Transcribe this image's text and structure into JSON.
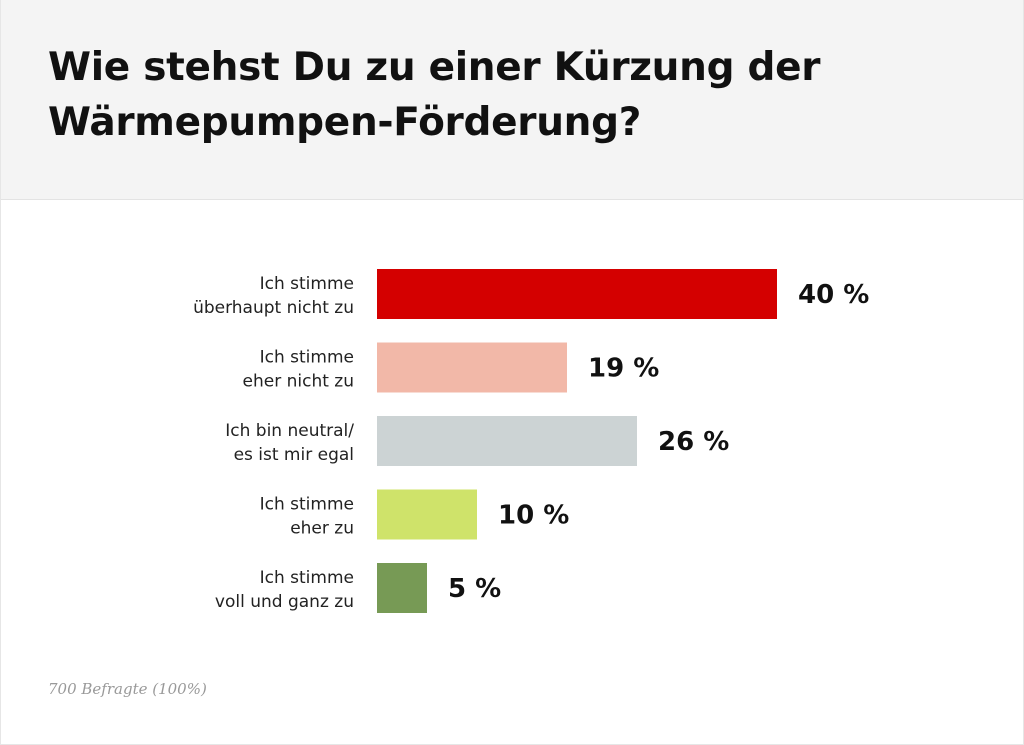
{
  "title": "Wie stehst Du zu einer Kürzung der Wärmepumpen-Förderung?",
  "footnote": "700 Befragte (100%)",
  "chart_data": {
    "type": "bar",
    "orientation": "horizontal",
    "title": "Wie stehst Du zu einer Kürzung der Wärmepumpen-Förderung?",
    "xlabel": "",
    "ylabel": "",
    "xlim": [
      0,
      40
    ],
    "grid": false,
    "categories": [
      [
        "Ich stimme",
        "überhaupt nicht zu"
      ],
      [
        "Ich stimme",
        "eher nicht zu"
      ],
      [
        "Ich bin neutral/",
        "es ist mir egal"
      ],
      [
        "Ich stimme",
        "eher zu"
      ],
      [
        "Ich stimme",
        "voll und ganz zu"
      ]
    ],
    "values": [
      40,
      19,
      26,
      10,
      5
    ],
    "value_labels": [
      "40 %",
      "19 %",
      "26 %",
      "10 %",
      "5 %"
    ],
    "colors": [
      "#d40000",
      "#f2b8a8",
      "#ccd3d4",
      "#cfe36a",
      "#779a55"
    ]
  }
}
